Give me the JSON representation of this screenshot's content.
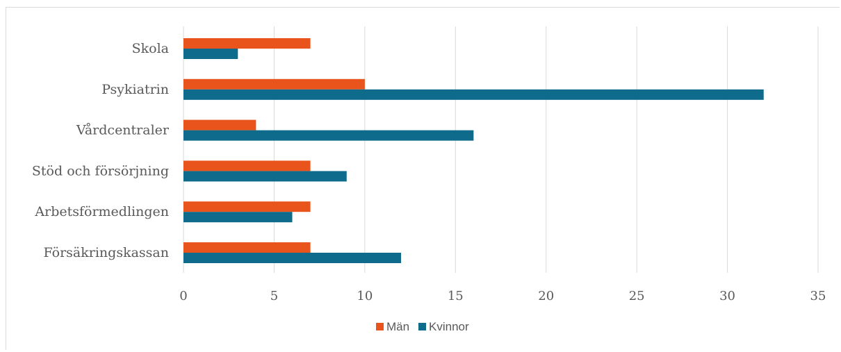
{
  "chart_data": {
    "type": "bar",
    "orientation": "horizontal",
    "title": "",
    "xlabel": "",
    "ylabel": "",
    "categories": [
      "Skola",
      "Psykiatrin",
      "Vårdcentraler",
      "Stöd och försörjning",
      "Arbetsförmedlingen",
      "Försäkringskassan"
    ],
    "series": [
      {
        "name": "Män",
        "color": "#e8541c",
        "values": [
          7,
          10,
          4,
          7,
          7,
          7
        ]
      },
      {
        "name": "Kvinnor",
        "color": "#0f6b8c",
        "values": [
          3,
          32,
          16,
          9,
          6,
          12
        ]
      }
    ],
    "xlim": [
      0,
      35
    ],
    "xticks": [
      "0",
      "5",
      "10",
      "15",
      "20",
      "25",
      "30",
      "35"
    ],
    "grid": "vertical",
    "legend": "bottom"
  }
}
